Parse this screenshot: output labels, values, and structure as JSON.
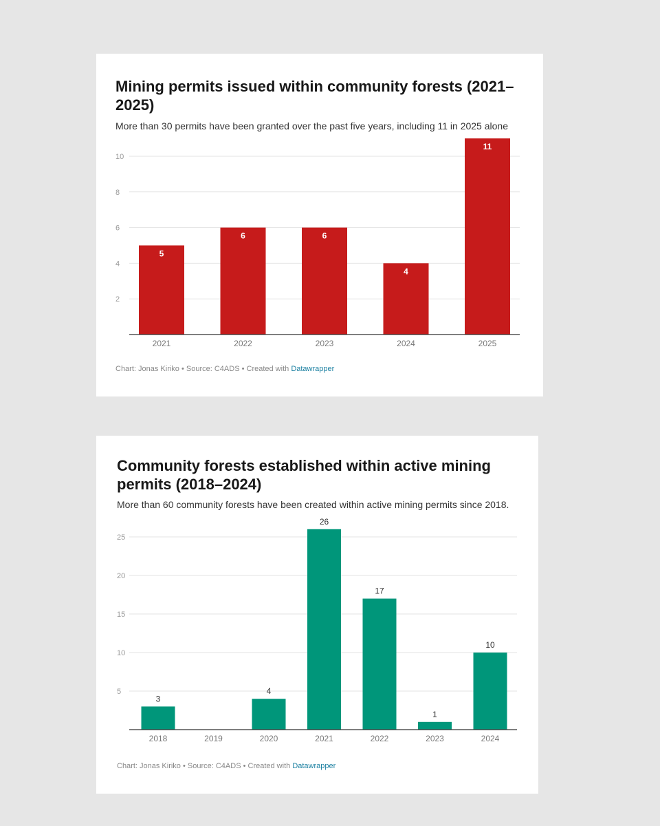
{
  "charts": [
    {
      "title": "Mining permits issued within community forests (2021–2025)",
      "subtitle": "More than 30 permits have been granted over the past five years, including 11 in 2025 alone",
      "footer": {
        "credit": "Chart: Jonas Kiriko • Source: C4ADS • Created with ",
        "link": "Datawrapper"
      },
      "colors": {
        "bar": "#c61b1b",
        "label": "#ffffff"
      }
    },
    {
      "title": "Community forests established within active mining permits (2018–2024)",
      "subtitle": "More than 60 community forests have been created within active mining permits since 2018.",
      "footer": {
        "credit": "Chart: Jonas Kiriko • Source: C4ADS • Created with ",
        "link": "Datawrapper"
      },
      "colors": {
        "bar": "#00967a",
        "label": "#333333"
      }
    }
  ],
  "chart_data": [
    {
      "type": "bar",
      "title": "Mining permits issued within community forests (2021–2025)",
      "categories": [
        "2021",
        "2022",
        "2023",
        "2024",
        "2025"
      ],
      "values": [
        5,
        6,
        6,
        4,
        11
      ],
      "ylim": [
        0,
        11
      ],
      "yticks": [
        2,
        4,
        6,
        8,
        10
      ],
      "grid": true,
      "value_labels": "inside-top"
    },
    {
      "type": "bar",
      "title": "Community forests established within active mining permits (2018–2024)",
      "categories": [
        "2018",
        "2019",
        "2020",
        "2021",
        "2022",
        "2023",
        "2024"
      ],
      "values": [
        3,
        0,
        4,
        26,
        17,
        1,
        10
      ],
      "value_labels_shown": [
        "3",
        "",
        "4",
        "26",
        "17",
        "1",
        "10"
      ],
      "ylim": [
        0,
        26
      ],
      "yticks": [
        5,
        10,
        15,
        20,
        25
      ],
      "grid": true,
      "value_labels": "above"
    }
  ]
}
